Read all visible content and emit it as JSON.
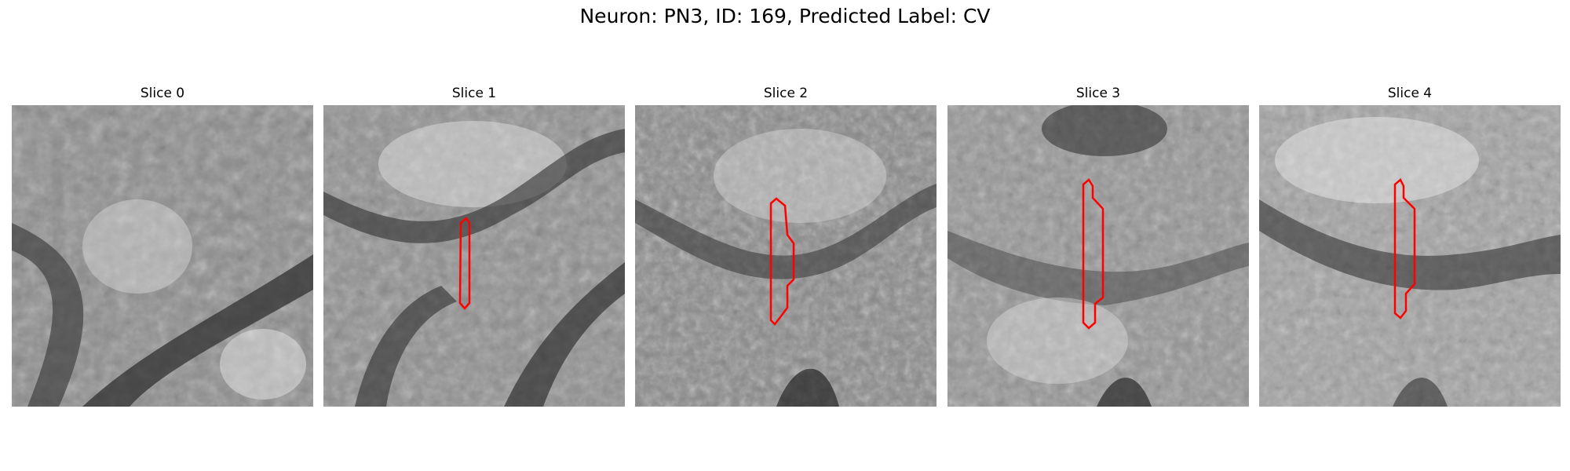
{
  "figure": {
    "title": "Neuron: PN3, ID: 169, Predicted Label: CV"
  },
  "panels": [
    {
      "title": "Slice 0",
      "has_contour": false
    },
    {
      "title": "Slice 1",
      "has_contour": true
    },
    {
      "title": "Slice 2",
      "has_contour": true
    },
    {
      "title": "Slice 3",
      "has_contour": true
    },
    {
      "title": "Slice 4",
      "has_contour": true
    }
  ],
  "colors": {
    "contour": "#ff0000"
  }
}
